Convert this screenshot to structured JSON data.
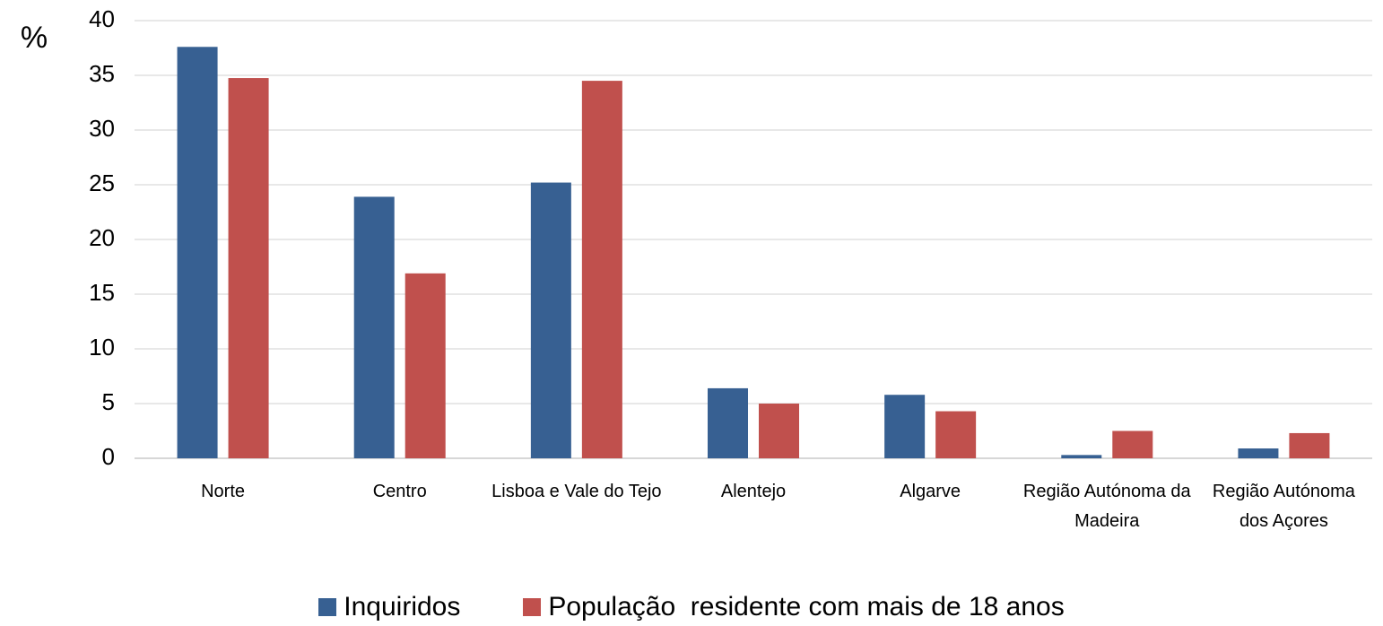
{
  "chart_data": {
    "type": "bar",
    "y_axis_label": "%",
    "categories": [
      "Norte",
      "Centro",
      "Lisboa e Vale do Tejo",
      "Alentejo",
      "Algarve",
      "Região Autónoma da Madeira",
      "Região Autónoma dos Açores"
    ],
    "series": [
      {
        "name": "Inquiridos",
        "color": "#376092",
        "values": [
          37.6,
          23.9,
          25.2,
          6.4,
          5.8,
          0.3,
          0.9
        ]
      },
      {
        "name": "População  residente com mais de 18 anos",
        "color": "#c0504d",
        "values": [
          34.75,
          16.9,
          34.5,
          5.0,
          4.3,
          2.5,
          2.3
        ]
      }
    ],
    "ylim": [
      0,
      40
    ],
    "yticks": [
      0,
      5,
      10,
      15,
      20,
      25,
      30,
      35,
      40
    ],
    "grid": true,
    "legend": "bottom"
  }
}
